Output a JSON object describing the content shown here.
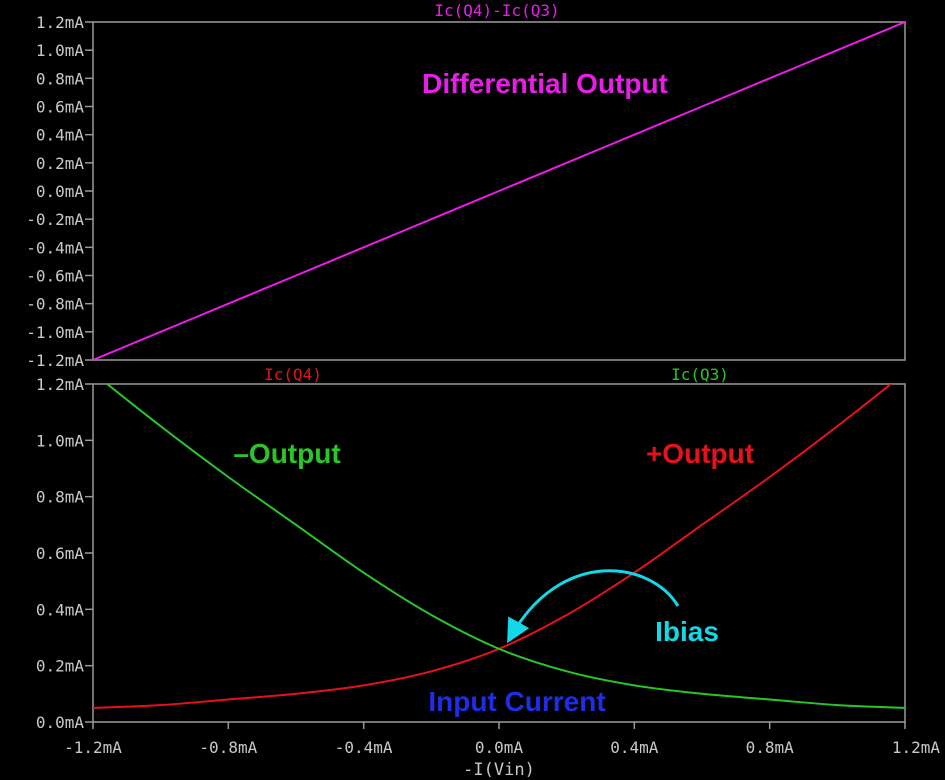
{
  "colors": {
    "background": "#000000",
    "frame": "#9a9a9a",
    "tick_text": "#c8c8c8",
    "magenta": "#e81ee8",
    "red": "#e5121b",
    "green": "#29c529",
    "blue": "#1e2ee6",
    "cyan": "#12d8e8"
  },
  "annotations": {
    "differential": "Differential Output",
    "neg_output": "–Output",
    "pos_output": "+Output",
    "ibias": "Ibias",
    "input_current": "Input Current"
  },
  "chart_data": [
    {
      "type": "line",
      "title": "Ic(Q4)-Ic(Q3)",
      "xlim": [
        -1.2,
        1.2
      ],
      "ylim": [
        -1.2,
        1.2
      ],
      "ytick_values": [
        1.2,
        1.0,
        0.8,
        0.6,
        0.4,
        0.2,
        0.0,
        -0.2,
        -0.4,
        -0.6,
        -0.8,
        -1.0,
        -1.2
      ],
      "ytick_labels": [
        "1.2mA",
        "1.0mA",
        "0.8mA",
        "0.6mA",
        "0.4mA",
        "0.2mA",
        "0.0mA",
        "-0.2mA",
        "-0.4mA",
        "-0.6mA",
        "-0.8mA",
        "-1.0mA",
        "-1.2mA"
      ],
      "series": [
        {
          "name": "Ic(Q4)-Ic(Q3)",
          "color": "#e81ee8",
          "x": [
            -1.2,
            -1.0,
            -0.8,
            -0.6,
            -0.4,
            -0.2,
            0.0,
            0.2,
            0.4,
            0.6,
            0.8,
            1.0,
            1.2
          ],
          "y": [
            -1.2,
            -1.0,
            -0.8,
            -0.6,
            -0.4,
            -0.2,
            0.0,
            0.2,
            0.4,
            0.6,
            0.8,
            1.0,
            1.2
          ]
        }
      ]
    },
    {
      "type": "line",
      "xlabel": "-I(Vin)",
      "xlim": [
        -1.2,
        1.2
      ],
      "ylim": [
        0.0,
        1.2
      ],
      "xtick_values": [
        -1.2,
        -0.8,
        -0.4,
        0.0,
        0.4,
        0.8,
        1.2
      ],
      "xtick_labels": [
        "-1.2mA",
        "-0.8mA",
        "-0.4mA",
        "0.0mA",
        "0.4mA",
        "0.8mA",
        "1.2mA"
      ],
      "ytick_values": [
        1.2,
        1.0,
        0.8,
        0.6,
        0.4,
        0.2,
        0.0
      ],
      "ytick_labels": [
        "1.2mA",
        "1.0mA",
        "0.8mA",
        "0.6mA",
        "0.4mA",
        "0.2mA",
        "0.0mA"
      ],
      "series": [
        {
          "name": "Ic(Q4)",
          "color": "#e5121b",
          "x": [
            -1.2,
            -1.0,
            -0.8,
            -0.6,
            -0.4,
            -0.2,
            0.0,
            0.2,
            0.4,
            0.6,
            0.8,
            1.0,
            1.2
          ],
          "y": [
            0.05,
            0.06,
            0.08,
            0.1,
            0.13,
            0.18,
            0.26,
            0.38,
            0.53,
            0.7,
            0.87,
            1.05,
            1.24
          ]
        },
        {
          "name": "Ic(Q3)",
          "color": "#29c529",
          "x": [
            -1.2,
            -1.0,
            -0.8,
            -0.6,
            -0.4,
            -0.2,
            0.0,
            0.2,
            0.4,
            0.6,
            0.8,
            1.0,
            1.2
          ],
          "y": [
            1.24,
            1.05,
            0.87,
            0.7,
            0.53,
            0.38,
            0.26,
            0.18,
            0.13,
            0.1,
            0.08,
            0.06,
            0.05
          ]
        }
      ]
    }
  ]
}
